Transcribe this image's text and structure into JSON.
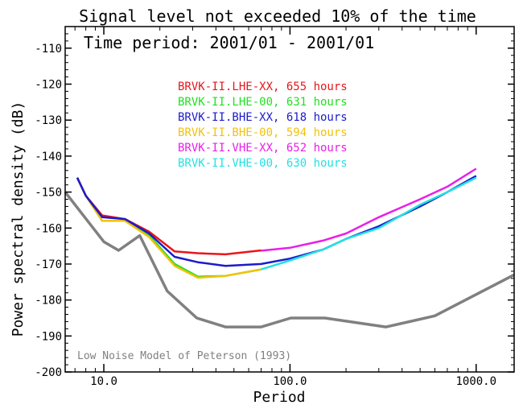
{
  "chart_data": {
    "type": "line",
    "title": "Signal level not exceeded 10% of the time",
    "subtitle": "Time period: 2001/01 - 2001/01",
    "xlabel": "Period",
    "ylabel": "Power spectral density (dB)",
    "xscale": "log",
    "xlim": [
      6.2,
      1600
    ],
    "ylim": [
      -200,
      -104
    ],
    "x_ticks": [
      10,
      100,
      1000
    ],
    "x_tick_labels": [
      "10.0",
      "100.0",
      "1000.0"
    ],
    "y_ticks": [
      -200,
      -190,
      -180,
      -170,
      -160,
      -150,
      -140,
      -130,
      -120,
      -110
    ],
    "y_tick_labels": [
      "-200",
      "-190",
      "-180",
      "-170",
      "-160",
      "-150",
      "-140",
      "-130",
      "-120",
      "-110"
    ],
    "grid": false,
    "legend_position": "top-center",
    "series": [
      {
        "name": "BRVK-II.LHE-XX, 655 hours",
        "color": "#e8161b",
        "x": [
          7.2,
          8.0,
          9.8,
          13,
          17.5,
          24,
          32,
          45,
          70
        ],
        "y": [
          -146,
          -151,
          -156.5,
          -157.5,
          -161,
          -166.5,
          -167,
          -167.3,
          -166.2
        ]
      },
      {
        "name": "BRVK-II.LHE-00, 631 hours",
        "color": "#22e022",
        "x": [
          7.2,
          8.0,
          9.8,
          13,
          17.5,
          24,
          32,
          45,
          70
        ],
        "y": [
          -146,
          -151,
          -158,
          -158,
          -162,
          -170,
          -173.5,
          -173.3,
          -171.5
        ]
      },
      {
        "name": "BRVK-II.BHE-XX, 618 hours",
        "color": "#1b1bcc",
        "x": [
          7.2,
          8.0,
          9.8,
          13,
          17.5,
          24,
          32,
          45,
          70,
          100,
          150,
          200,
          300,
          500,
          700,
          1000
        ],
        "y": [
          -146,
          -151,
          -157,
          -157.5,
          -161.5,
          -168,
          -169.5,
          -170.5,
          -170,
          -168.5,
          -166,
          -163,
          -159.5,
          -154,
          -150,
          -145.5
        ]
      },
      {
        "name": "BRVK-II.BHE-00, 594 hours",
        "color": "#f2c20d",
        "x": [
          7.2,
          8.0,
          9.8,
          13,
          17.5,
          24,
          32,
          45,
          70
        ],
        "y": [
          -146,
          -151,
          -158,
          -158,
          -162.5,
          -170.5,
          -173.8,
          -173.3,
          -171.5
        ]
      },
      {
        "name": "BRVK-II.VHE-XX, 652 hours",
        "color": "#e820e8",
        "x": [
          70,
          100,
          150,
          200,
          300,
          500,
          700,
          1000
        ],
        "y": [
          -166.3,
          -165.5,
          -163.5,
          -161.5,
          -157,
          -152,
          -148.5,
          -143.5
        ]
      },
      {
        "name": "BRVK-II.VHE-00, 630 hours",
        "color": "#22e2e2",
        "x": [
          70,
          100,
          150,
          200,
          300,
          500,
          700,
          1000
        ],
        "y": [
          -171.5,
          -169,
          -166,
          -163,
          -160,
          -153.5,
          -150,
          -146
        ]
      },
      {
        "name": "Low Noise Model of Peterson (1993)",
        "color": "#808080",
        "x": [
          6.2,
          10,
          12,
          15.6,
          21.9,
          31.6,
          45,
          70,
          101,
          154,
          328,
          600,
          1600
        ],
        "y": [
          -150,
          -163.8,
          -166.2,
          -162.1,
          -177.5,
          -185,
          -187.5,
          -187.5,
          -185,
          -185,
          -187.5,
          -184.4,
          -173
        ]
      }
    ]
  }
}
